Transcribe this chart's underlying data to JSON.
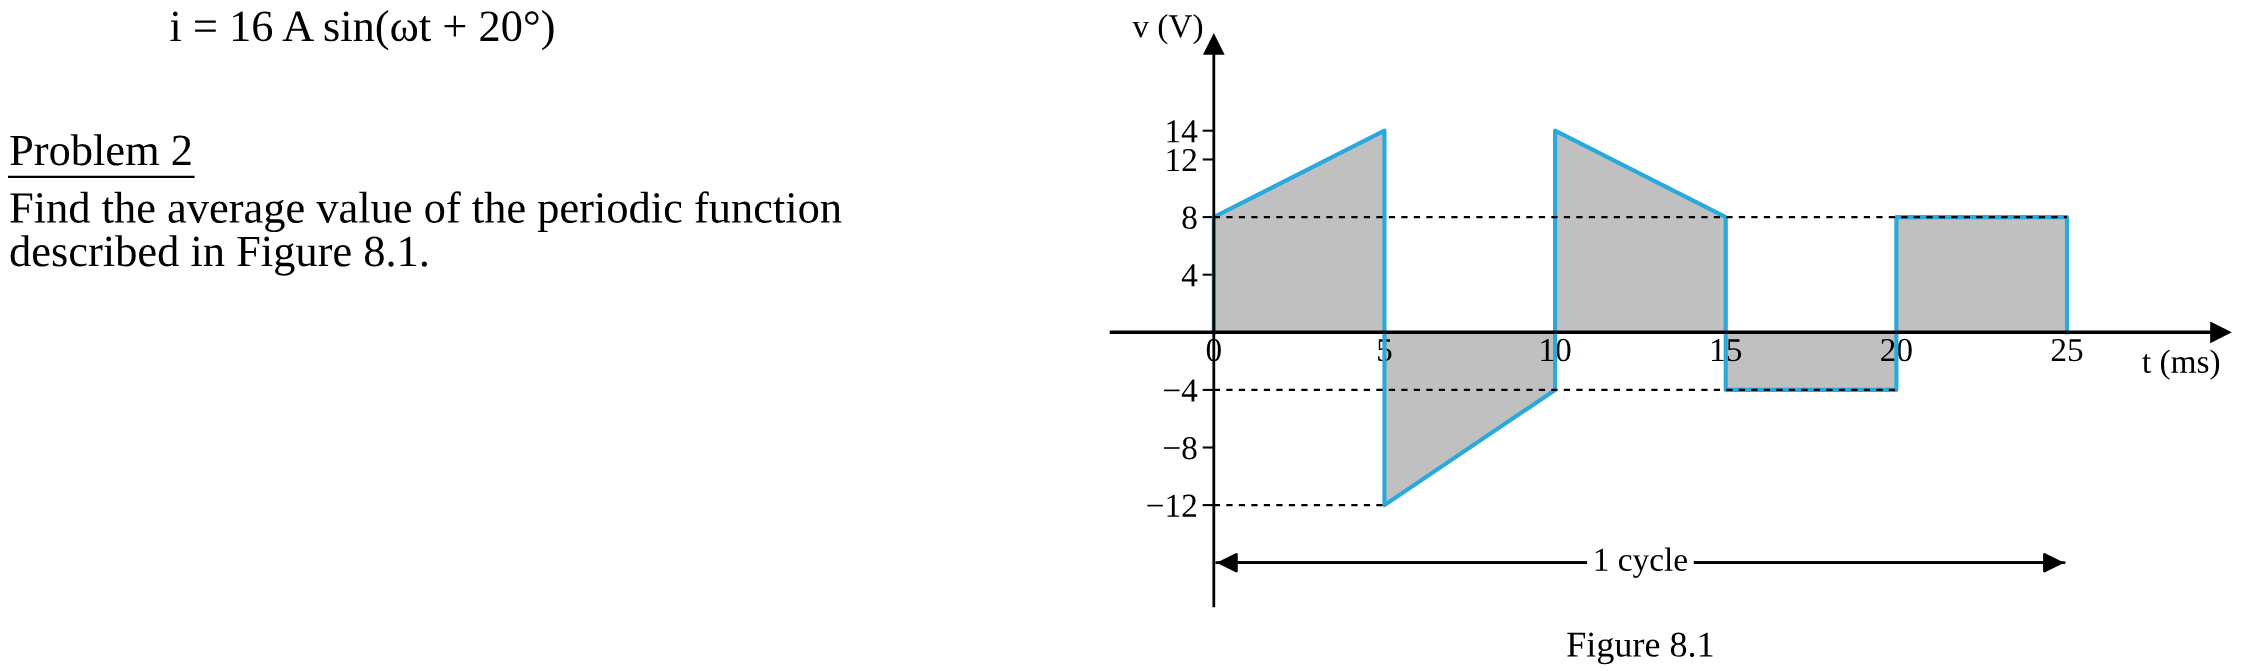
{
  "chart_data": {
    "type": "area",
    "title": "Figure 8.1",
    "xlabel": "t (ms)",
    "ylabel": "v (V)",
    "series": [
      {
        "color": "#29a9dc",
        "x": [
          0,
          0,
          5,
          5,
          10,
          10,
          15,
          15,
          20,
          20,
          25,
          25
        ],
        "values": [
          0,
          8,
          14,
          -12,
          -4,
          14,
          8,
          -4,
          -4,
          8,
          8,
          0
        ]
      }
    ],
    "xlim": [
      -3,
      29.5
    ],
    "ylim": [
      -19,
      20
    ],
    "xticks": [
      0,
      5,
      10,
      15,
      20,
      25
    ],
    "yticks": [
      -12,
      -8,
      -4,
      4,
      8,
      12,
      14
    ],
    "ref_lines": [
      {
        "axis": "y",
        "value": 8,
        "line_style": "dotted"
      },
      {
        "axis": "y",
        "value": -4,
        "line_style": "dotted"
      },
      {
        "axis": "y",
        "value": -12,
        "line_style": "dotted"
      }
    ],
    "annotations": [
      "i = 16 A sin(ωt + 20°)",
      "Problem 2",
      "Find the average value of the periodic function\ndescribed in Figure 8.1.",
      "1 cycle"
    ],
    "grid": false
  }
}
